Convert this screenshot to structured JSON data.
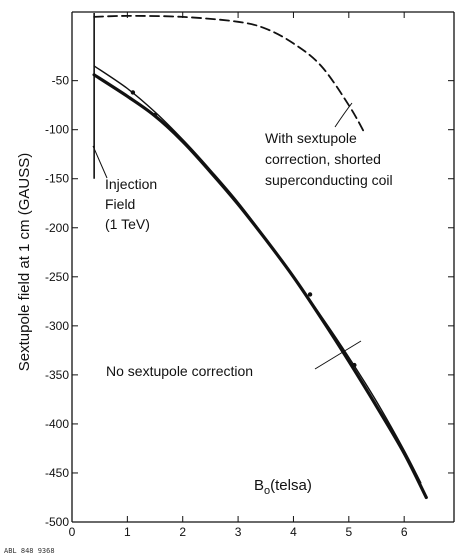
{
  "chart_data": {
    "type": "line",
    "title": "",
    "xlabel": "",
    "xlabel_main": "B",
    "xlabel_sub": "o",
    "xlabel_unit": "(telsa)",
    "ylabel": "Sextupole field at 1 cm (GAUSS)",
    "xlim": [
      0,
      6.9
    ],
    "ylim": [
      -500,
      20
    ],
    "x_ticks": [
      0,
      1,
      2,
      3,
      4,
      5,
      6
    ],
    "x_tick_labels": [
      "0",
      "1",
      "2",
      "3",
      "4",
      "5",
      "6"
    ],
    "y_ticks": [
      -50,
      -100,
      -150,
      -200,
      -250,
      -300,
      -350,
      -400,
      -450,
      -500
    ],
    "y_tick_labels": [
      "-50",
      "-100",
      "-150",
      "-200",
      "-250",
      "-300",
      "-350",
      "-400",
      "-450",
      "-500"
    ],
    "grid": false,
    "injection_field_x": 0.4,
    "series": [
      {
        "style": "dashed",
        "x": [
          0.4,
          1.0,
          2.0,
          3.0,
          3.5,
          4.0,
          4.5,
          5.0,
          5.3
        ],
        "y": [
          15,
          16,
          15,
          10,
          3,
          -12,
          -35,
          -75,
          -105
        ]
      },
      {
        "style": "solid-thin",
        "x": [
          0.4,
          1.0,
          1.5,
          2.0,
          2.5,
          3.0,
          3.5,
          4.0,
          4.5,
          5.0,
          5.5,
          6.0,
          6.3
        ],
        "y": [
          -35,
          -58,
          -82,
          -110,
          -141,
          -174,
          -211,
          -250,
          -290,
          -332,
          -377,
          -427,
          -460
        ]
      },
      {
        "style": "solid-thick",
        "x": [
          0.4,
          1.0,
          1.5,
          2.0,
          2.5,
          3.0,
          3.5,
          4.0,
          4.5,
          5.0,
          5.5,
          6.0,
          6.4
        ],
        "y": [
          -44,
          -66,
          -86,
          -112,
          -143,
          -176,
          -212,
          -250,
          -292,
          -336,
          -382,
          -430,
          -475
        ]
      }
    ],
    "annotations": {
      "dashed": [
        "With sextupole",
        "correction, shorted",
        "superconducting  coil"
      ],
      "injection": [
        "Injection",
        "Field",
        "(1 TeV)"
      ],
      "uncorrected": "No sextupole correction"
    },
    "corner_code": "ABL 848 9368"
  }
}
